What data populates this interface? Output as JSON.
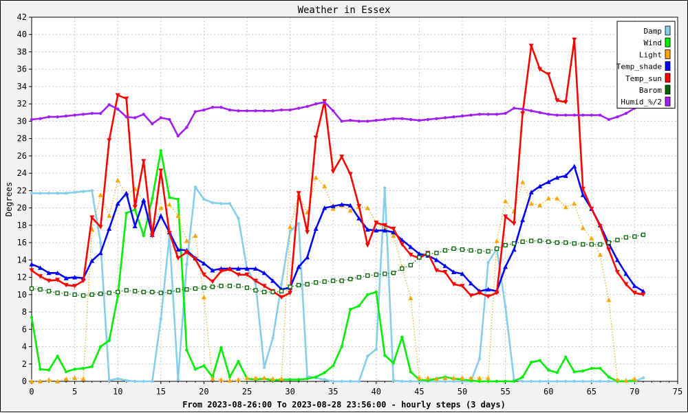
{
  "chart_data": {
    "type": "line",
    "title": "Weather in Essex",
    "xlabel": "From 2023-08-26:00 To 2023-08-28 23:56:00 - hourly steps (3 days)",
    "ylabel": "Degrees",
    "xlim": [
      0,
      75
    ],
    "ylim": [
      0,
      42
    ],
    "xticks": [
      0,
      5,
      10,
      15,
      20,
      25,
      30,
      35,
      40,
      45,
      50,
      55,
      60,
      65,
      70,
      75
    ],
    "yticks": [
      0,
      2,
      4,
      6,
      8,
      10,
      12,
      14,
      16,
      18,
      20,
      22,
      24,
      26,
      28,
      30,
      32,
      34,
      36,
      38,
      40,
      42
    ],
    "grid": true,
    "legend_position": "top-right",
    "series": [
      {
        "name": "Damp",
        "color": "#87ceeb",
        "marker": "dot",
        "dash": "solid",
        "values": [
          21.7,
          21.7,
          21.7,
          21.7,
          21.7,
          21.8,
          21.9,
          22.0,
          16.0,
          0.1,
          0.3,
          0.1,
          0.0,
          0.0,
          0.0,
          7.2,
          16.8,
          0.2,
          13.5,
          22.4,
          21.0,
          20.6,
          20.5,
          20.5,
          18.8,
          13.0,
          11.3,
          1.6,
          5.0,
          11.2,
          17.3,
          18.2,
          0.6,
          0.4,
          0.2,
          0.0,
          0.0,
          0.0,
          0.0,
          2.9,
          3.7,
          22.3,
          0.1,
          0.0,
          0.0,
          0.0,
          0.0,
          0.0,
          0.0,
          0.0,
          0.0,
          0.0,
          2.6,
          13.7,
          15.3,
          8.6,
          0.2,
          0.0,
          0.0,
          0.0,
          0.0,
          0.0,
          0.0,
          0.0,
          0.0,
          0.0,
          0.0,
          0.0,
          0.0,
          0.0,
          0.0,
          0.4
        ]
      },
      {
        "name": "Wind",
        "color": "#00ee00",
        "marker": "dot",
        "dash": "solid",
        "values": [
          7.4,
          1.4,
          1.3,
          2.9,
          1.1,
          1.4,
          1.5,
          1.7,
          4.0,
          4.7,
          9.8,
          19.4,
          19.8,
          16.8,
          21.1,
          26.6,
          21.2,
          21.0,
          3.6,
          1.4,
          1.8,
          0.5,
          3.9,
          0.5,
          2.3,
          0.3,
          0.2,
          0.3,
          0.1,
          0.2,
          0.2,
          0.2,
          0.3,
          0.5,
          1.0,
          1.8,
          4.0,
          8.3,
          8.7,
          10.0,
          10.3,
          3.0,
          2.1,
          5.1,
          1.1,
          0.2,
          0.1,
          0.3,
          0.5,
          0.3,
          0.2,
          0.1,
          0.0,
          0.0,
          0.0,
          0.0,
          0.0,
          0.5,
          2.2,
          2.4,
          1.3,
          1.0,
          2.8,
          1.1,
          1.2,
          1.5,
          1.5,
          0.5,
          0.0,
          0.0,
          0.1
        ]
      },
      {
        "name": "Light",
        "color": "#ffa500",
        "marker": "triangle-up",
        "dash": "dotted",
        "values": [
          0.0,
          0.0,
          0.2,
          0.0,
          0.3,
          0.4,
          0.3,
          17.5,
          21.5,
          19.1,
          23.2,
          21.5,
          22.2,
          20.8,
          17.2,
          20.0,
          20.4,
          19.1,
          16.2,
          16.8,
          9.7,
          0.3,
          0.2,
          0.1,
          0.2,
          0.4,
          0.4,
          0.4,
          0.3,
          0.3,
          17.8,
          21.5,
          19.5,
          23.5,
          22.5,
          19.9,
          20.3,
          19.7,
          20.1,
          20.0,
          18.3,
          17.6,
          16.8,
          13.2,
          9.6,
          0.4,
          0.4,
          0.3,
          0.4,
          0.4,
          0.4,
          0.4,
          0.4,
          0.4,
          16.2,
          20.8,
          19.6,
          23.0,
          20.5,
          20.3,
          21.1,
          21.1,
          20.1,
          20.5,
          17.7,
          16.5,
          14.6,
          9.4,
          0.2,
          0.1,
          0.3
        ]
      },
      {
        "name": "Temp_shade",
        "color": "#0000ff",
        "marker": "triangle-up",
        "dash": "solid",
        "values": [
          13.5,
          13.1,
          12.5,
          12.5,
          11.9,
          12.0,
          11.9,
          13.9,
          14.8,
          17.6,
          20.5,
          21.7,
          17.9,
          20.9,
          16.9,
          19.1,
          17.2,
          15.2,
          15.1,
          14.2,
          13.6,
          12.8,
          13.0,
          13.0,
          13.0,
          13.0,
          13.0,
          12.5,
          11.6,
          10.6,
          10.8,
          13.2,
          14.3,
          17.6,
          20.0,
          20.2,
          20.4,
          20.3,
          18.8,
          17.5,
          17.4,
          17.4,
          17.2,
          16.3,
          15.5,
          14.7,
          14.5,
          14.0,
          13.3,
          12.6,
          12.4,
          11.3,
          10.4,
          10.6,
          10.4,
          13.2,
          15.2,
          18.6,
          21.8,
          22.5,
          23.0,
          23.5,
          23.7,
          24.8,
          21.5,
          19.9,
          18.0,
          15.9,
          14.0,
          12.4,
          11.0,
          10.4
        ]
      },
      {
        "name": "Temp_sun",
        "color": "#ff0000",
        "marker": "triangle-down",
        "dash": "solid",
        "values": [
          12.8,
          12.1,
          11.6,
          11.7,
          11.1,
          11.0,
          11.6,
          18.9,
          17.8,
          27.8,
          33.0,
          32.6,
          20.1,
          25.4,
          16.8,
          24.3,
          17.1,
          14.2,
          14.9,
          14.1,
          12.3,
          11.5,
          12.7,
          12.9,
          12.3,
          12.3,
          11.6,
          11.0,
          10.4,
          9.7,
          10.2,
          21.7,
          17.2,
          28.1,
          32.3,
          24.2,
          25.9,
          23.9,
          20.2,
          15.7,
          18.3,
          18.0,
          17.6,
          15.8,
          14.6,
          14.2,
          14.8,
          12.8,
          12.6,
          11.2,
          11.0,
          9.9,
          10.2,
          9.8,
          10.2,
          19.0,
          18.2,
          30.9,
          38.7,
          36.0,
          35.4,
          32.4,
          32.2,
          39.4,
          22.2,
          19.9,
          17.9,
          15.2,
          12.6,
          11.2,
          10.2,
          10.0
        ]
      },
      {
        "name": "Barom",
        "color": "#006400",
        "marker": "square",
        "dash": "dotted",
        "values": [
          10.7,
          10.6,
          10.4,
          10.2,
          10.1,
          10.0,
          9.9,
          10.0,
          10.1,
          10.2,
          10.3,
          10.5,
          10.4,
          10.3,
          10.3,
          10.2,
          10.3,
          10.5,
          10.6,
          10.7,
          10.8,
          10.9,
          11.0,
          11.0,
          11.0,
          10.8,
          10.5,
          10.3,
          10.3,
          10.4,
          10.9,
          11.1,
          11.2,
          11.4,
          11.5,
          11.6,
          11.6,
          11.8,
          12.0,
          12.2,
          12.3,
          12.4,
          12.5,
          13.0,
          13.4,
          14.3,
          14.7,
          14.8,
          15.1,
          15.3,
          15.2,
          15.1,
          15.0,
          15.0,
          15.3,
          15.7,
          15.9,
          16.1,
          16.2,
          16.2,
          16.1,
          16.0,
          16.0,
          15.9,
          15.8,
          15.8,
          15.8,
          16.0,
          16.3,
          16.6,
          16.7,
          16.9
        ]
      },
      {
        "name": "Humid_%/2",
        "color": "#a020f0",
        "marker": "dot",
        "dash": "solid",
        "values": [
          30.2,
          30.3,
          30.5,
          30.5,
          30.6,
          30.7,
          30.8,
          30.9,
          30.9,
          31.9,
          31.4,
          30.5,
          30.4,
          30.8,
          29.7,
          30.4,
          30.2,
          28.3,
          29.3,
          31.1,
          31.3,
          31.6,
          31.6,
          31.3,
          31.2,
          31.2,
          31.2,
          31.2,
          31.2,
          31.3,
          31.3,
          31.5,
          31.7,
          32.0,
          32.2,
          31.2,
          30.0,
          30.1,
          30.0,
          30.0,
          30.1,
          30.2,
          30.3,
          30.3,
          30.2,
          30.1,
          30.2,
          30.3,
          30.4,
          30.5,
          30.6,
          30.7,
          30.8,
          30.8,
          30.8,
          30.9,
          31.5,
          31.4,
          31.2,
          31.0,
          30.8,
          30.7,
          30.7,
          30.7,
          30.7,
          30.7,
          30.7,
          30.2,
          30.5,
          30.9,
          31.5,
          32.0
        ]
      }
    ]
  }
}
